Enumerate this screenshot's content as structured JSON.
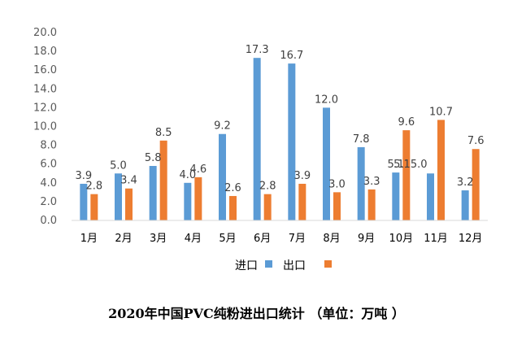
{
  "chart_data": {
    "type": "bar",
    "categories": [
      "1月",
      "2月",
      "3月",
      "4月",
      "5月",
      "6月",
      "7月",
      "8月",
      "9月",
      "10月",
      "11月",
      "12月"
    ],
    "series": [
      {
        "name": "进口",
        "values": [
          3.9,
          5.0,
          5.8,
          4.0,
          9.2,
          17.3,
          16.7,
          12.0,
          7.8,
          5.1,
          5.0,
          3.2
        ],
        "labels": [
          "3.9",
          "5.0",
          "5.8",
          "4.0",
          "9.2",
          "17.3",
          "16.7",
          "12.0",
          "7.8",
          "5.1",
          "",
          "3.2"
        ],
        "color": "#5B9BD5"
      },
      {
        "name": "出口",
        "values": [
          2.8,
          3.4,
          8.5,
          4.6,
          2.6,
          2.8,
          3.9,
          3.0,
          3.3,
          9.6,
          10.7,
          7.6
        ],
        "labels": [
          "2.8",
          "3.4",
          "8.5",
          "4.6",
          "2.6",
          "2.8",
          "3.9",
          "3.0",
          "3.3",
          "9.6",
          "10.7",
          "7.6"
        ],
        "color": "#ED7D31"
      }
    ],
    "merged_labels": [
      "5.15.0"
    ],
    "ylim": [
      0,
      20
    ],
    "yticks": [
      "0.0",
      "2.0",
      "4.0",
      "6.0",
      "8.0",
      "10.0",
      "12.0",
      "14.0",
      "16.0",
      "18.0",
      "20.0"
    ],
    "grid": false,
    "legend_position": "bottom",
    "title": "",
    "xlabel": "",
    "ylabel": "",
    "caption": "2020年中国PVC纯粉进出口统计 （单位：万吨 ）"
  }
}
